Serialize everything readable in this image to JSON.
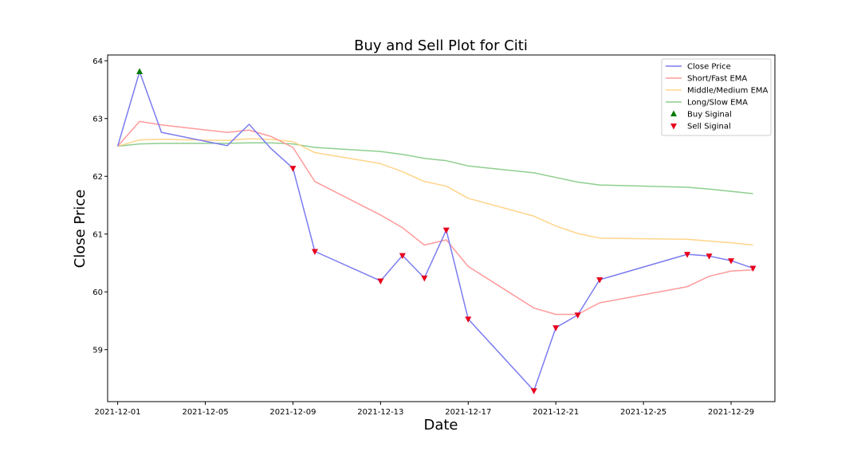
{
  "chart_data": {
    "type": "line",
    "title": "Buy and Sell Plot for Citi",
    "xlabel": "Date",
    "ylabel": "Close Price",
    "x_ticks": [
      "2021-12-01",
      "2021-12-05",
      "2021-12-09",
      "2021-12-13",
      "2021-12-17",
      "2021-12-21",
      "2021-12-25",
      "2021-12-29"
    ],
    "y_ticks": [
      59,
      60,
      61,
      62,
      63,
      64
    ],
    "xlim": [
      "2021-11-30T13:00",
      "2021-12-31T00:00"
    ],
    "ylim": [
      58.1,
      64.1
    ],
    "legend_position": "top-right",
    "grid": false,
    "series": [
      {
        "name": "Close Price",
        "color": "#7b7bf0",
        "points": [
          [
            "2021-12-01",
            62.52
          ],
          [
            "2021-12-02",
            63.81
          ],
          [
            "2021-12-03",
            62.76
          ],
          [
            "2021-12-06",
            62.53
          ],
          [
            "2021-12-07",
            62.9
          ],
          [
            "2021-12-08",
            62.48
          ],
          [
            "2021-12-09",
            62.14
          ],
          [
            "2021-12-10",
            60.7
          ],
          [
            "2021-12-13",
            60.19
          ],
          [
            "2021-12-14",
            60.63
          ],
          [
            "2021-12-15",
            60.24
          ],
          [
            "2021-12-16",
            61.07
          ],
          [
            "2021-12-17",
            59.53
          ],
          [
            "2021-12-20",
            58.29
          ],
          [
            "2021-12-21",
            59.38
          ],
          [
            "2021-12-22",
            59.6
          ],
          [
            "2021-12-23",
            60.21
          ],
          [
            "2021-12-27",
            60.65
          ],
          [
            "2021-12-28",
            60.62
          ],
          [
            "2021-12-29",
            60.54
          ],
          [
            "2021-12-30",
            60.41
          ]
        ]
      },
      {
        "name": "Short/Fast EMA",
        "color": "#ff9a9a",
        "points": [
          [
            "2021-12-01",
            62.52
          ],
          [
            "2021-12-02",
            62.95
          ],
          [
            "2021-12-03",
            62.89
          ],
          [
            "2021-12-06",
            62.76
          ],
          [
            "2021-12-07",
            62.8
          ],
          [
            "2021-12-08",
            62.69
          ],
          [
            "2021-12-09",
            62.5
          ],
          [
            "2021-12-10",
            61.91
          ],
          [
            "2021-12-13",
            61.33
          ],
          [
            "2021-12-14",
            61.11
          ],
          [
            "2021-12-15",
            60.81
          ],
          [
            "2021-12-16",
            60.9
          ],
          [
            "2021-12-17",
            60.44
          ],
          [
            "2021-12-20",
            59.72
          ],
          [
            "2021-12-21",
            59.61
          ],
          [
            "2021-12-22",
            59.61
          ],
          [
            "2021-12-23",
            59.81
          ],
          [
            "2021-12-27",
            60.09
          ],
          [
            "2021-12-28",
            60.27
          ],
          [
            "2021-12-29",
            60.36
          ],
          [
            "2021-12-30",
            60.38
          ]
        ]
      },
      {
        "name": "Middle/Medium EMA",
        "color": "#ffd58a",
        "points": [
          [
            "2021-12-01",
            62.52
          ],
          [
            "2021-12-02",
            62.63
          ],
          [
            "2021-12-03",
            62.64
          ],
          [
            "2021-12-06",
            62.62
          ],
          [
            "2021-12-07",
            62.65
          ],
          [
            "2021-12-08",
            62.64
          ],
          [
            "2021-12-09",
            62.6
          ],
          [
            "2021-12-10",
            62.41
          ],
          [
            "2021-12-13",
            62.22
          ],
          [
            "2021-12-14",
            62.08
          ],
          [
            "2021-12-15",
            61.91
          ],
          [
            "2021-12-16",
            61.83
          ],
          [
            "2021-12-17",
            61.62
          ],
          [
            "2021-12-20",
            61.31
          ],
          [
            "2021-12-21",
            61.14
          ],
          [
            "2021-12-22",
            61.01
          ],
          [
            "2021-12-23",
            60.93
          ],
          [
            "2021-12-27",
            60.91
          ],
          [
            "2021-12-28",
            60.88
          ],
          [
            "2021-12-29",
            60.85
          ],
          [
            "2021-12-30",
            60.81
          ]
        ]
      },
      {
        "name": "Long/Slow EMA",
        "color": "#8fce8f",
        "points": [
          [
            "2021-12-01",
            62.52
          ],
          [
            "2021-12-02",
            62.56
          ],
          [
            "2021-12-03",
            62.57
          ],
          [
            "2021-12-06",
            62.57
          ],
          [
            "2021-12-07",
            62.58
          ],
          [
            "2021-12-08",
            62.58
          ],
          [
            "2021-12-09",
            62.56
          ],
          [
            "2021-12-10",
            62.5
          ],
          [
            "2021-12-13",
            62.43
          ],
          [
            "2021-12-14",
            62.38
          ],
          [
            "2021-12-15",
            62.31
          ],
          [
            "2021-12-16",
            62.27
          ],
          [
            "2021-12-17",
            62.18
          ],
          [
            "2021-12-20",
            62.06
          ],
          [
            "2021-12-21",
            61.98
          ],
          [
            "2021-12-22",
            61.9
          ],
          [
            "2021-12-23",
            61.85
          ],
          [
            "2021-12-27",
            61.81
          ],
          [
            "2021-12-28",
            61.78
          ],
          [
            "2021-12-29",
            61.74
          ],
          [
            "2021-12-30",
            61.7
          ]
        ]
      }
    ],
    "markers": [
      {
        "name": "Buy Siginal",
        "symbol": "triangle-up",
        "color": "#007a00",
        "points": [
          [
            "2021-12-02",
            63.81
          ]
        ]
      },
      {
        "name": "Sell Siginal",
        "symbol": "triangle-down",
        "color": "#e8001c",
        "points": [
          [
            "2021-12-09",
            62.14
          ],
          [
            "2021-12-10",
            60.7
          ],
          [
            "2021-12-13",
            60.19
          ],
          [
            "2021-12-14",
            60.63
          ],
          [
            "2021-12-15",
            60.24
          ],
          [
            "2021-12-16",
            61.07
          ],
          [
            "2021-12-17",
            59.53
          ],
          [
            "2021-12-20",
            58.29
          ],
          [
            "2021-12-21",
            59.38
          ],
          [
            "2021-12-22",
            59.6
          ],
          [
            "2021-12-23",
            60.21
          ],
          [
            "2021-12-27",
            60.65
          ],
          [
            "2021-12-28",
            60.62
          ],
          [
            "2021-12-29",
            60.54
          ],
          [
            "2021-12-30",
            60.41
          ]
        ]
      }
    ]
  }
}
